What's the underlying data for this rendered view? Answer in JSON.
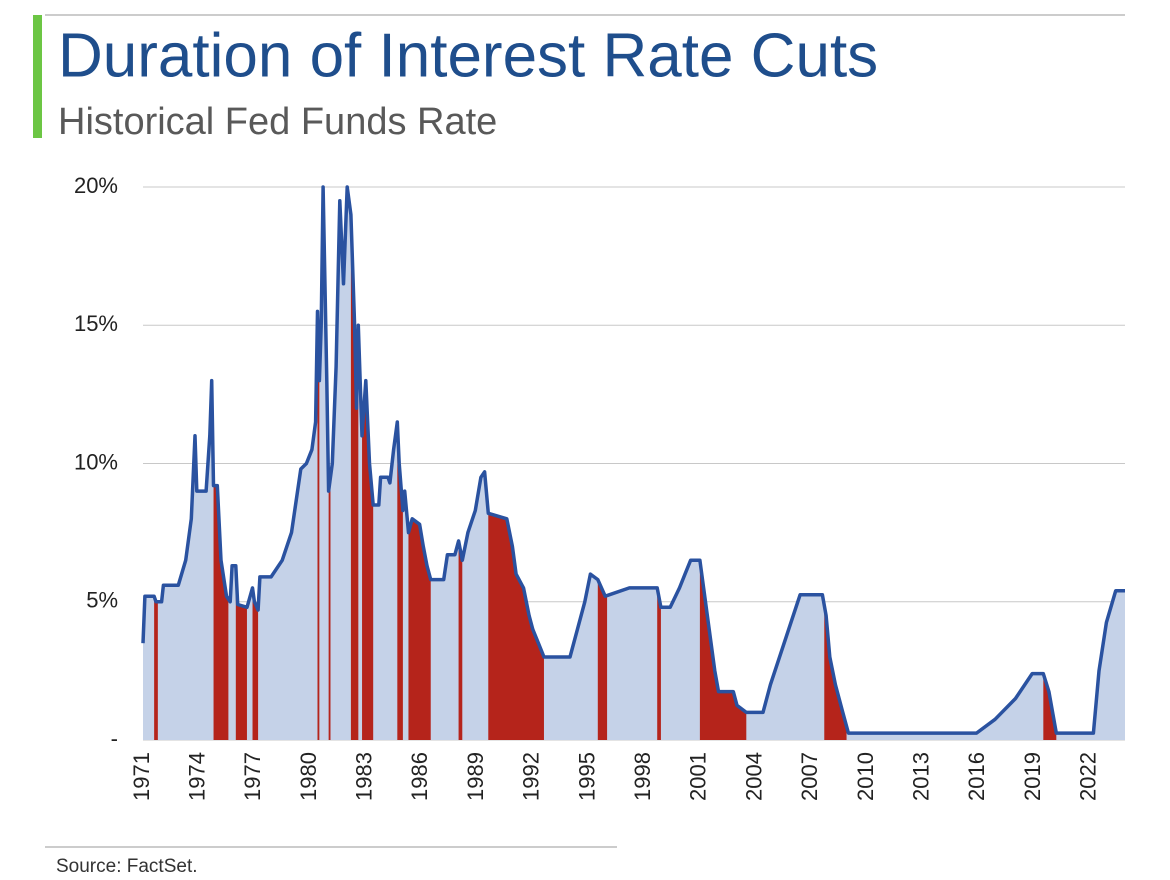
{
  "chart_data": {
    "type": "line",
    "title": "Duration of Interest Rate Cuts",
    "subtitle": "Historical Fed Funds Rate",
    "source": "Source: FactSet.",
    "x": [
      1971.0,
      1971.1,
      1971.6,
      1971.7,
      1972.0,
      1972.1,
      1972.9,
      1973.3,
      1973.6,
      1973.8,
      1973.9,
      1974.4,
      1974.6,
      1974.7,
      1974.8,
      1975.0,
      1975.2,
      1975.5,
      1975.7,
      1975.8,
      1976.0,
      1976.1,
      1976.6,
      1976.9,
      1977.0,
      1977.2,
      1977.3,
      1977.9,
      1978.5,
      1979.0,
      1979.5,
      1979.8,
      1980.1,
      1980.3,
      1980.4,
      1980.5,
      1980.6,
      1980.7,
      1980.9,
      1981.0,
      1981.2,
      1981.4,
      1981.6,
      1981.8,
      1982.0,
      1982.2,
      1982.4,
      1982.5,
      1982.6,
      1982.8,
      1983.0,
      1983.2,
      1983.4,
      1983.7,
      1983.8,
      1984.2,
      1984.3,
      1984.5,
      1984.7,
      1984.8,
      1985.0,
      1985.1,
      1985.3,
      1985.5,
      1985.9,
      1986.1,
      1986.3,
      1986.5,
      1987.2,
      1987.4,
      1987.8,
      1988.0,
      1988.2,
      1988.5,
      1988.9,
      1989.2,
      1989.4,
      1989.6,
      1990.6,
      1990.9,
      1991.1,
      1991.5,
      1991.8,
      1992.0,
      1992.3,
      1992.6,
      1994.0,
      1994.4,
      1994.8,
      1995.1,
      1995.5,
      1995.9,
      1997.2,
      1998.7,
      1998.9,
      1999.4,
      1999.9,
      2000.2,
      2000.5,
      2001.0,
      2001.2,
      2001.5,
      2001.8,
      2002.0,
      2002.8,
      2003.0,
      2003.5,
      2004.4,
      2004.8,
      2006.4,
      2007.6,
      2007.8,
      2008.0,
      2008.3,
      2008.7,
      2009.0,
      2015.9,
      2016.9,
      2018.0,
      2018.9,
      2019.5,
      2019.8,
      2020.2,
      2022.2,
      2022.5,
      2022.9,
      2023.4,
      2023.9
    ],
    "series": [
      {
        "color": "#2a52a0",
        "fill": "#c5d2e8",
        "values": [
          3.5,
          5.2,
          5.2,
          5.0,
          5.0,
          5.6,
          5.6,
          6.5,
          8.0,
          11.0,
          9.0,
          9.0,
          11.0,
          13.0,
          9.2,
          9.2,
          6.5,
          5.2,
          5.0,
          6.3,
          6.3,
          4.9,
          4.8,
          5.5,
          5.0,
          4.7,
          5.9,
          5.9,
          6.5,
          7.5,
          9.8,
          10.0,
          10.5,
          11.5,
          15.5,
          13.0,
          15.0,
          20.0,
          13.0,
          9.0,
          10.0,
          13.5,
          19.5,
          16.5,
          20.0,
          19.0,
          15.0,
          12.0,
          15.0,
          11.0,
          13.0,
          10.0,
          8.5,
          8.5,
          9.5,
          9.5,
          9.3,
          10.5,
          11.5,
          10.0,
          8.3,
          9.0,
          7.5,
          8.0,
          7.8,
          7.0,
          6.3,
          5.8,
          5.8,
          6.7,
          6.7,
          7.2,
          6.5,
          7.5,
          8.3,
          9.5,
          9.7,
          8.2,
          8.0,
          7.0,
          6.0,
          5.5,
          4.5,
          4.0,
          3.5,
          3.0,
          3.0,
          4.0,
          5.0,
          6.0,
          5.8,
          5.2,
          5.5,
          5.5,
          4.8,
          4.8,
          5.5,
          6.0,
          6.5,
          6.5,
          5.5,
          4.0,
          2.5,
          1.75,
          1.75,
          1.25,
          1.0,
          1.0,
          2.0,
          5.25,
          5.25,
          4.5,
          3.0,
          2.0,
          1.0,
          0.25,
          0.25,
          0.75,
          1.5,
          2.4,
          2.4,
          1.75,
          0.25,
          0.25,
          2.5,
          4.25,
          5.4,
          5.4
        ]
      }
    ],
    "shaded_periods": [
      [
        1971.6,
        1971.8
      ],
      [
        1974.8,
        1975.6
      ],
      [
        1976.0,
        1976.6
      ],
      [
        1976.9,
        1977.2
      ],
      [
        1980.4,
        1980.5
      ],
      [
        1981.0,
        1981.1
      ],
      [
        1982.2,
        1982.6
      ],
      [
        1982.8,
        1983.4
      ],
      [
        1984.7,
        1985.0
      ],
      [
        1985.3,
        1986.5
      ],
      [
        1988.0,
        1988.2
      ],
      [
        1989.6,
        1992.6
      ],
      [
        1995.5,
        1996.0
      ],
      [
        1998.7,
        1998.9
      ],
      [
        2001.0,
        2003.5
      ],
      [
        2007.7,
        2008.9
      ],
      [
        2019.5,
        2020.2
      ]
    ],
    "shaded_color": "#b5241b",
    "xlim": [
      1971,
      2023.9
    ],
    "xticks": [
      1971,
      1974,
      1977,
      1980,
      1983,
      1986,
      1989,
      1992,
      1995,
      1998,
      2001,
      2004,
      2007,
      2010,
      2013,
      2016,
      2019,
      2022
    ],
    "ylim": [
      0,
      20
    ],
    "yticks": [
      {
        "value": 0,
        "label": "-"
      },
      {
        "value": 5,
        "label": "5%"
      },
      {
        "value": 10,
        "label": "10%"
      },
      {
        "value": 15,
        "label": "15%"
      },
      {
        "value": 20,
        "label": "20%"
      }
    ],
    "grid": true
  }
}
